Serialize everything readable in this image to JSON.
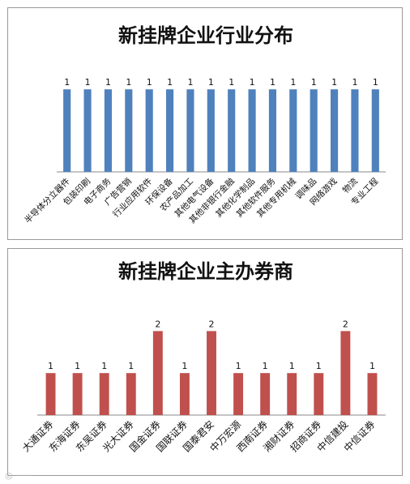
{
  "chart_data": [
    {
      "type": "bar",
      "title": "新挂牌企业行业分布",
      "categories": [
        "半导体分立器件",
        "包装印刷",
        "电子商务",
        "广告营销",
        "行业应用软件",
        "环保设备",
        "农产品加工",
        "其他电气设备",
        "其他非银行金融",
        "其他化学制品",
        "其他软件服务",
        "其他专用机械",
        "调味品",
        "网络游戏",
        "物流",
        "专业工程"
      ],
      "values": [
        1,
        1,
        1,
        1,
        1,
        1,
        1,
        1,
        1,
        1,
        1,
        1,
        1,
        1,
        1,
        1
      ],
      "color": "#4f81bd",
      "ylim": [
        0,
        1.1
      ],
      "grid": false,
      "legend": "none"
    },
    {
      "type": "bar",
      "title": "新挂牌企业主办券商",
      "categories": [
        "大通证券",
        "东海证券",
        "东吴证券",
        "光大证券",
        "国金证券",
        "国联证券",
        "国泰君安",
        "中万宏源",
        "西南证券",
        "湘财证券",
        "招商证券",
        "中信建投",
        "中信证券"
      ],
      "values": [
        1,
        1,
        1,
        1,
        2,
        1,
        2,
        1,
        1,
        1,
        1,
        2,
        1
      ],
      "color": "#c0504d",
      "ylim": [
        0,
        2.2
      ],
      "grid": false,
      "legend": "none"
    }
  ]
}
